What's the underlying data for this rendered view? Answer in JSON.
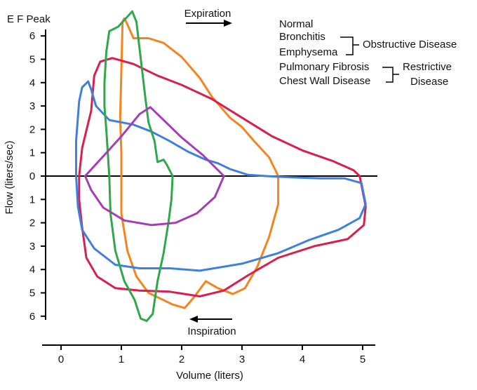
{
  "chart_data": {
    "type": "line",
    "xlabel": "Volume (liters)",
    "ylabel": "Flow (liters/sec)",
    "ylabel_top": "E F Peak",
    "xlim": [
      -0.35,
      5.25
    ],
    "ylim": [
      -6.2,
      7.1
    ],
    "x_ticks": [
      0,
      1,
      2,
      3,
      4,
      5
    ],
    "y_ticks": [
      {
        "value": 6,
        "label": "6"
      },
      {
        "value": 5,
        "label": "5"
      },
      {
        "value": 4,
        "label": "4"
      },
      {
        "value": 3,
        "label": "3"
      },
      {
        "value": 2,
        "label": "2"
      },
      {
        "value": 1,
        "label": "1"
      },
      {
        "value": 0,
        "label": "0"
      },
      {
        "value": -1,
        "label": "1"
      },
      {
        "value": -2,
        "label": "2"
      },
      {
        "value": -3,
        "label": "3"
      },
      {
        "value": -4,
        "label": "4"
      },
      {
        "value": -5,
        "label": "5"
      },
      {
        "value": -6,
        "label": "6"
      }
    ],
    "annotations": {
      "expiration": "Expiration",
      "inspiration": "Inspiration",
      "obstructive": "Obstructive Disease",
      "restrictive_line1": "Restrictive",
      "restrictive_line2": "Disease"
    },
    "series": [
      {
        "name": "Normal",
        "color": "#f5841f",
        "points": [
          [
            1.0,
            0
          ],
          [
            1.0,
            1
          ],
          [
            0.98,
            2.5
          ],
          [
            1.0,
            4.5
          ],
          [
            1.02,
            6.6
          ],
          [
            1.05,
            6.75
          ],
          [
            1.1,
            6.5
          ],
          [
            1.2,
            5.9
          ],
          [
            1.45,
            5.9
          ],
          [
            1.7,
            5.7
          ],
          [
            2.0,
            5.1
          ],
          [
            2.3,
            4.2
          ],
          [
            2.5,
            3.4
          ],
          [
            2.8,
            2.5
          ],
          [
            3.0,
            2.1
          ],
          [
            3.2,
            1.5
          ],
          [
            3.45,
            0.8
          ],
          [
            3.6,
            0
          ],
          [
            3.6,
            -1.2
          ],
          [
            3.45,
            -2.6
          ],
          [
            3.25,
            -3.9
          ],
          [
            3.05,
            -4.8
          ],
          [
            2.85,
            -5.05
          ],
          [
            2.6,
            -4.8
          ],
          [
            2.4,
            -4.5
          ],
          [
            2.2,
            -5.2
          ],
          [
            2.05,
            -5.65
          ],
          [
            1.85,
            -5.5
          ],
          [
            1.65,
            -5.25
          ],
          [
            1.45,
            -5.0
          ],
          [
            1.25,
            -4.3
          ],
          [
            1.1,
            -3.2
          ],
          [
            1.0,
            -1.6
          ],
          [
            1.0,
            0
          ]
        ]
      },
      {
        "name": "Bronchitis",
        "color": "#d81f4f",
        "points": [
          [
            0.3,
            0
          ],
          [
            0.35,
            1.2
          ],
          [
            0.5,
            2.8
          ],
          [
            0.55,
            4.3
          ],
          [
            0.65,
            4.9
          ],
          [
            0.85,
            5.05
          ],
          [
            1.2,
            4.8
          ],
          [
            1.6,
            4.3
          ],
          [
            2.0,
            3.9
          ],
          [
            2.5,
            3.3
          ],
          [
            3.0,
            2.5
          ],
          [
            3.5,
            1.7
          ],
          [
            4.0,
            1.1
          ],
          [
            4.5,
            0.65
          ],
          [
            4.85,
            0.25
          ],
          [
            4.95,
            0
          ],
          [
            5.05,
            -1.3
          ],
          [
            5.02,
            -2.1
          ],
          [
            4.75,
            -2.7
          ],
          [
            4.2,
            -3.0
          ],
          [
            3.6,
            -3.5
          ],
          [
            3.1,
            -4.25
          ],
          [
            2.7,
            -4.9
          ],
          [
            2.3,
            -5.15
          ],
          [
            1.8,
            -4.95
          ],
          [
            1.3,
            -4.9
          ],
          [
            0.9,
            -4.8
          ],
          [
            0.6,
            -4.3
          ],
          [
            0.42,
            -3.5
          ],
          [
            0.35,
            -2.2
          ],
          [
            0.3,
            -1.0
          ],
          [
            0.3,
            0
          ]
        ]
      },
      {
        "name": "Emphysema",
        "color": "#3f7fde",
        "points": [
          [
            0.25,
            0
          ],
          [
            0.25,
            1.5
          ],
          [
            0.3,
            3.2
          ],
          [
            0.35,
            3.8
          ],
          [
            0.45,
            4.05
          ],
          [
            0.5,
            3.7
          ],
          [
            0.58,
            3.0
          ],
          [
            0.8,
            2.4
          ],
          [
            1.2,
            2.2
          ],
          [
            1.5,
            1.9
          ],
          [
            1.8,
            1.5
          ],
          [
            2.1,
            1.05
          ],
          [
            2.4,
            0.7
          ],
          [
            2.6,
            0.55
          ],
          [
            2.8,
            0.3
          ],
          [
            3.1,
            0.05
          ],
          [
            3.4,
            0
          ],
          [
            3.8,
            -0.05
          ],
          [
            4.3,
            -0.1
          ],
          [
            4.7,
            -0.1
          ],
          [
            4.98,
            -0.3
          ],
          [
            5.05,
            -1.2
          ],
          [
            4.95,
            -1.8
          ],
          [
            4.6,
            -2.3
          ],
          [
            4.1,
            -2.75
          ],
          [
            3.6,
            -3.3
          ],
          [
            3.0,
            -3.75
          ],
          [
            2.3,
            -4.05
          ],
          [
            1.8,
            -3.95
          ],
          [
            1.3,
            -3.95
          ],
          [
            0.9,
            -3.8
          ],
          [
            0.55,
            -3.1
          ],
          [
            0.35,
            -2.3
          ],
          [
            0.28,
            -1.3
          ],
          [
            0.25,
            0
          ]
        ]
      },
      {
        "name": "Pulmonary Fibrosis",
        "color": "#2ea84a",
        "points": [
          [
            1.85,
            0
          ],
          [
            1.75,
            0.5
          ],
          [
            1.7,
            0.7
          ],
          [
            1.6,
            0.6
          ],
          [
            1.55,
            1.5
          ],
          [
            1.45,
            2.3
          ],
          [
            1.4,
            3.3
          ],
          [
            1.35,
            4.4
          ],
          [
            1.3,
            5.5
          ],
          [
            1.25,
            6.6
          ],
          [
            1.18,
            7.05
          ],
          [
            0.95,
            6.4
          ],
          [
            0.8,
            6.2
          ],
          [
            0.75,
            5.3
          ],
          [
            0.72,
            4.0
          ],
          [
            0.72,
            3.0
          ],
          [
            0.75,
            2.0
          ],
          [
            0.78,
            0.8
          ],
          [
            0.8,
            0
          ],
          [
            0.82,
            -1.6
          ],
          [
            0.9,
            -3.2
          ],
          [
            1.05,
            -4.5
          ],
          [
            1.22,
            -5.3
          ],
          [
            1.32,
            -6.1
          ],
          [
            1.42,
            -6.2
          ],
          [
            1.52,
            -5.9
          ],
          [
            1.6,
            -4.5
          ],
          [
            1.7,
            -3.3
          ],
          [
            1.78,
            -2.0
          ],
          [
            1.83,
            -1.0
          ],
          [
            1.85,
            0
          ]
        ]
      },
      {
        "name": "Chest Wall Disease",
        "color": "#a33eb4",
        "points": [
          [
            0.4,
            0
          ],
          [
            0.7,
            0.85
          ],
          [
            1.0,
            1.7
          ],
          [
            1.3,
            2.65
          ],
          [
            1.48,
            2.95
          ],
          [
            1.7,
            2.4
          ],
          [
            2.0,
            1.65
          ],
          [
            2.35,
            0.9
          ],
          [
            2.7,
            0
          ],
          [
            2.55,
            -0.9
          ],
          [
            2.25,
            -1.6
          ],
          [
            1.9,
            -2.0
          ],
          [
            1.5,
            -2.1
          ],
          [
            1.05,
            -1.9
          ],
          [
            0.7,
            -1.35
          ],
          [
            0.5,
            -0.6
          ],
          [
            0.4,
            0
          ]
        ]
      }
    ]
  },
  "legend": {
    "items": [
      {
        "name": "Normal",
        "color": "#f5841f"
      },
      {
        "name": "Bronchitis",
        "color": "#d81f4f"
      },
      {
        "name": "Emphysema",
        "color": "#3f7fde"
      },
      {
        "name": "Pulmonary Fibrosis",
        "color": "#2ea84a"
      },
      {
        "name": "Chest Wall Disease",
        "color": "#a33eb4"
      }
    ]
  }
}
